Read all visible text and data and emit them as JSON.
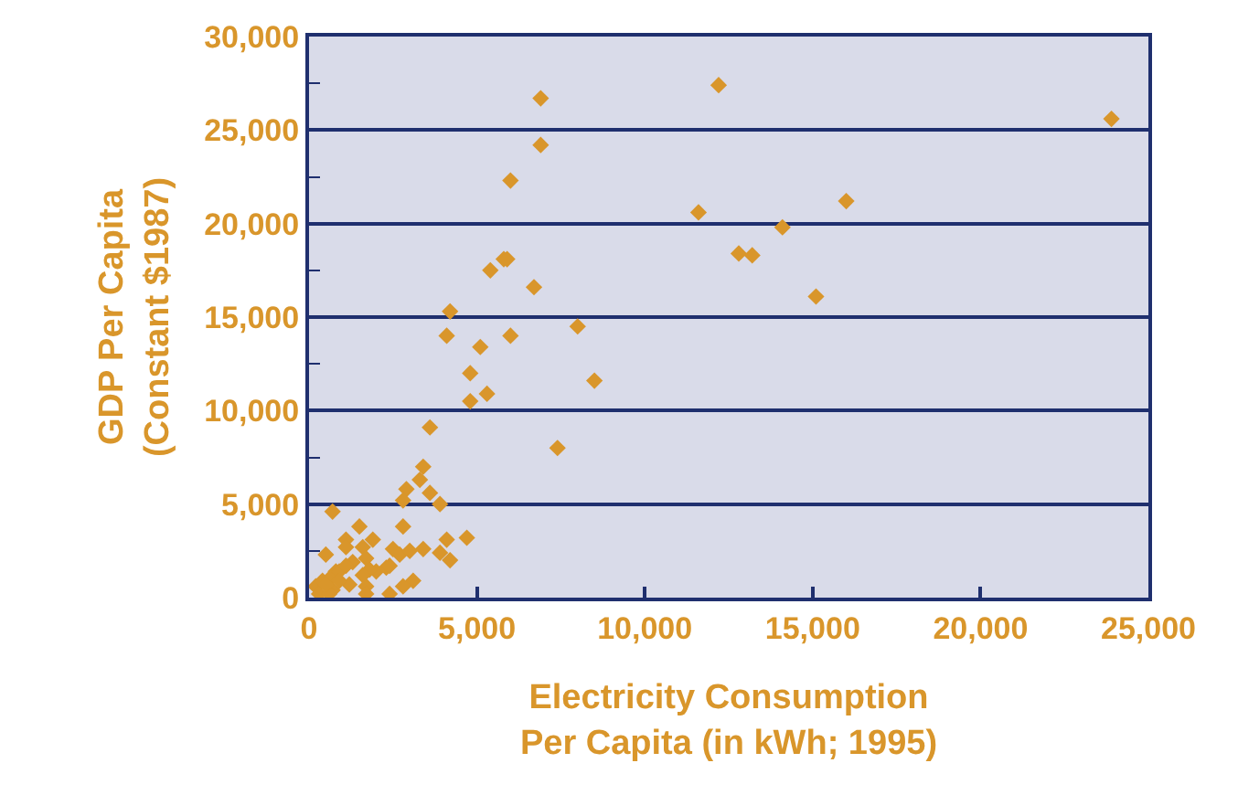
{
  "chart_data": {
    "type": "scatter",
    "xlabel": "Electricity Consumption\nPer Capita (in kWh; 1995)",
    "ylabel": "GDP Per Capita\n(Constant $1987)",
    "x": [
      6900,
      12200,
      23900,
      6900,
      6000,
      11600,
      16000,
      14100,
      12800,
      13200,
      5800,
      5900,
      5400,
      6700,
      15100,
      4200,
      4100,
      6000,
      8000,
      5100,
      4800,
      8500,
      5300,
      4800,
      7400,
      3600,
      3400,
      3300,
      3600,
      2900,
      2800,
      3900,
      700,
      2800,
      1500,
      4700,
      4100,
      1900,
      1100,
      1100,
      500,
      1600,
      2500,
      2700,
      3000,
      3400,
      3900,
      4200,
      1700,
      1300,
      2000,
      2300,
      2400,
      1800,
      1600,
      3100,
      2800,
      2400,
      1700,
      1700,
      700,
      1200,
      200,
      400,
      600,
      800,
      900,
      1100,
      300,
      600,
      500,
      900
    ],
    "series": [
      {
        "color": "#d9962b",
        "values": [
          26700,
          27400,
          25600,
          24200,
          22300,
          20600,
          21200,
          19800,
          18400,
          18300,
          18100,
          18100,
          17500,
          16600,
          16100,
          15300,
          14000,
          14000,
          14500,
          13400,
          12000,
          11600,
          10900,
          10500,
          8000,
          9100,
          7000,
          6300,
          5600,
          5800,
          5200,
          5000,
          4600,
          3800,
          3800,
          3200,
          3100,
          3100,
          3100,
          2700,
          2300,
          2700,
          2600,
          2300,
          2500,
          2600,
          2400,
          2000,
          2100,
          1900,
          1400,
          1600,
          1700,
          1500,
          1200,
          900,
          600,
          200,
          600,
          200,
          400,
          700,
          600,
          900,
          1000,
          1400,
          1400,
          1700,
          200,
          200,
          700,
          900
        ]
      }
    ],
    "xlim": [
      0,
      25000
    ],
    "xticks": [
      {
        "value": 0,
        "label": "0"
      },
      {
        "value": 5000,
        "label": "5,000"
      },
      {
        "value": 10000,
        "label": "10,000"
      },
      {
        "value": 15000,
        "label": "15,000"
      },
      {
        "value": 20000,
        "label": "20,000"
      },
      {
        "value": 25000,
        "label": "25,000"
      }
    ],
    "ylim": [
      0,
      30000
    ],
    "yticks": [
      {
        "value": 0,
        "label": "0"
      },
      {
        "value": 2500,
        "label": null
      },
      {
        "value": 5000,
        "label": "5,000"
      },
      {
        "value": 7500,
        "label": null
      },
      {
        "value": 10000,
        "label": "10,000"
      },
      {
        "value": 12500,
        "label": null
      },
      {
        "value": 15000,
        "label": "15,000"
      },
      {
        "value": 17500,
        "label": null
      },
      {
        "value": 20000,
        "label": "20,000"
      },
      {
        "value": 22500,
        "label": null
      },
      {
        "value": 25000,
        "label": "25,000"
      },
      {
        "value": 27500,
        "label": null
      },
      {
        "value": 30000,
        "label": "30,000"
      }
    ],
    "grid": "y",
    "marker": "diamond"
  }
}
